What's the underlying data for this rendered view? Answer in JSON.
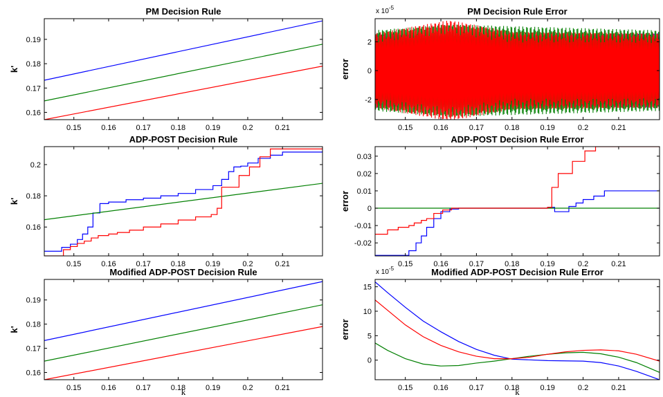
{
  "series_colors": [
    "#0000ff",
    "#007f00",
    "#ff0000"
  ],
  "chart_data": [
    {
      "type": "line",
      "title": "PM Decision Rule",
      "xlabel": "",
      "ylabel": "k'",
      "xlim": [
        0.1415,
        0.2215
      ],
      "ylim": [
        0.157,
        0.1985
      ],
      "xticks": [
        0.15,
        0.16,
        0.17,
        0.18,
        0.19,
        0.2,
        0.21
      ],
      "xtick_labels": [
        "0.15",
        "0.16",
        "0.17",
        "0.18",
        "0.19",
        "0.2",
        "0.21"
      ],
      "yticks": [
        0.16,
        0.17,
        0.18,
        0.19
      ],
      "ytick_labels": [
        "0.16",
        "0.17",
        "0.18",
        "0.19"
      ],
      "series": [
        {
          "x": [
            0.1415,
            0.2215
          ],
          "y": [
            0.1732,
            0.1976
          ]
        },
        {
          "x": [
            0.1415,
            0.2215
          ],
          "y": [
            0.1647,
            0.188
          ]
        },
        {
          "x": [
            0.1415,
            0.2215
          ],
          "y": [
            0.157,
            0.179
          ]
        }
      ]
    },
    {
      "type": "line",
      "title": "PM Decision Rule Error",
      "xlabel": "",
      "ylabel": "error",
      "multiplier": "x 10",
      "multiplier_exp": "-5",
      "xlim": [
        0.1415,
        0.2215
      ],
      "ylim": [
        -3.4,
        3.6
      ],
      "xticks": [
        0.15,
        0.16,
        0.17,
        0.18,
        0.19,
        0.2,
        0.21
      ],
      "xtick_labels": [
        "0.15",
        "0.16",
        "0.17",
        "0.18",
        "0.19",
        "0.2",
        "0.21"
      ],
      "yticks": [
        -2,
        0,
        2
      ],
      "ytick_labels": [
        "-2",
        "0",
        "2"
      ],
      "oscillating": true,
      "series": [
        {
          "amplitude": [
            [
              0.1415,
              2.6
            ],
            [
              0.1625,
              2.4
            ],
            [
              0.2215,
              2.6
            ]
          ]
        },
        {
          "amplitude": [
            [
              0.1415,
              2.8
            ],
            [
              0.1625,
              3.2
            ],
            [
              0.2215,
              2.8
            ]
          ]
        },
        {
          "amplitude": [
            [
              0.1415,
              2.6
            ],
            [
              0.1625,
              3.5
            ],
            [
              0.18,
              2.7
            ],
            [
              0.2215,
              2.6
            ]
          ]
        }
      ]
    },
    {
      "type": "line",
      "title": "ADP-POST Decision Rule",
      "xlabel": "",
      "ylabel": "k'",
      "xlim": [
        0.1415,
        0.2215
      ],
      "ylim": [
        0.1415,
        0.2115
      ],
      "xticks": [
        0.15,
        0.16,
        0.17,
        0.18,
        0.19,
        0.2,
        0.21
      ],
      "xtick_labels": [
        "0.15",
        "0.16",
        "0.17",
        "0.18",
        "0.19",
        "0.2",
        "0.21"
      ],
      "yticks": [
        0.16,
        0.18,
        0.2
      ],
      "ytick_labels": [
        "0.16",
        "0.18",
        "0.2"
      ],
      "series": [
        {
          "step": true,
          "x": [
            0.1415,
            0.1465,
            0.149,
            0.151,
            0.1525,
            0.154,
            0.1555,
            0.1575,
            0.16,
            0.165,
            0.17,
            0.175,
            0.18,
            0.185,
            0.19,
            0.1925,
            0.1945,
            0.196,
            0.198,
            0.2,
            0.203,
            0.2065,
            0.21,
            0.2215
          ],
          "y": [
            0.1445,
            0.147,
            0.149,
            0.152,
            0.1555,
            0.16,
            0.169,
            0.175,
            0.176,
            0.1775,
            0.1785,
            0.18,
            0.1815,
            0.184,
            0.1865,
            0.1905,
            0.1955,
            0.1985,
            0.199,
            0.201,
            0.204,
            0.206,
            0.208,
            0.209
          ]
        },
        {
          "step": false,
          "x": [
            0.1415,
            0.2215
          ],
          "y": [
            0.1647,
            0.188
          ]
        },
        {
          "step": true,
          "x": [
            0.1415,
            0.147,
            0.149,
            0.151,
            0.153,
            0.155,
            0.157,
            0.16,
            0.1625,
            0.166,
            0.17,
            0.175,
            0.18,
            0.185,
            0.1895,
            0.1912,
            0.1925,
            0.1975,
            0.2005,
            0.2035,
            0.2065,
            0.2215
          ],
          "y": [
            0.1415,
            0.1455,
            0.1475,
            0.1495,
            0.151,
            0.153,
            0.1545,
            0.1555,
            0.1565,
            0.158,
            0.16,
            0.162,
            0.1645,
            0.1665,
            0.168,
            0.172,
            0.1855,
            0.193,
            0.1985,
            0.205,
            0.21,
            0.215
          ]
        }
      ]
    },
    {
      "type": "line",
      "title": "ADP-POST Decision Rule Error",
      "xlabel": "",
      "ylabel": "error",
      "xlim": [
        0.1415,
        0.2215
      ],
      "ylim": [
        -0.0275,
        0.0355
      ],
      "xticks": [
        0.15,
        0.16,
        0.17,
        0.18,
        0.19,
        0.2,
        0.21
      ],
      "xtick_labels": [
        "0.15",
        "0.16",
        "0.17",
        "0.18",
        "0.19",
        "0.2",
        "0.21"
      ],
      "yticks": [
        -0.02,
        -0.01,
        0,
        0.01,
        0.02,
        0.03
      ],
      "ytick_labels": [
        "-0.02",
        "-0.01",
        "0",
        "0.01",
        "0.02",
        "0.03"
      ],
      "series": [
        {
          "step": true,
          "x": [
            0.1415,
            0.149,
            0.151,
            0.153,
            0.1545,
            0.156,
            0.158,
            0.16,
            0.1625,
            0.165,
            0.19,
            0.192,
            0.194,
            0.196,
            0.198,
            0.2,
            0.203,
            0.206,
            0.2215
          ],
          "y": [
            -0.0272,
            -0.0272,
            -0.0245,
            -0.02,
            -0.016,
            -0.011,
            -0.006,
            -0.002,
            -0.0005,
            0.0,
            0.0005,
            -0.002,
            -0.002,
            0.001,
            0.003,
            0.005,
            0.007,
            0.01,
            0.011
          ]
        },
        {
          "step": false,
          "x": [
            0.1415,
            0.2215
          ],
          "y": [
            0.0,
            0.0
          ]
        },
        {
          "step": true,
          "x": [
            0.1415,
            0.145,
            0.148,
            0.151,
            0.1525,
            0.1545,
            0.156,
            0.158,
            0.1605,
            0.163,
            0.19,
            0.1912,
            0.193,
            0.197,
            0.2005,
            0.2035,
            0.2065,
            0.2215
          ],
          "y": [
            -0.015,
            -0.0125,
            -0.011,
            -0.01,
            -0.0085,
            -0.007,
            -0.006,
            -0.003,
            -0.001,
            0.0,
            0.0005,
            0.012,
            0.02,
            0.027,
            0.033,
            0.0355,
            0.0355,
            0.035
          ]
        }
      ]
    },
    {
      "type": "line",
      "title": "Modified ADP-POST Decision Rule",
      "xlabel": "k",
      "ylabel": "k'",
      "xlim": [
        0.1415,
        0.2215
      ],
      "ylim": [
        0.157,
        0.1985
      ],
      "xticks": [
        0.15,
        0.16,
        0.17,
        0.18,
        0.19,
        0.2,
        0.21
      ],
      "xtick_labels": [
        "0.15",
        "0.16",
        "0.17",
        "0.18",
        "0.19",
        "0.2",
        "0.21"
      ],
      "yticks": [
        0.16,
        0.17,
        0.18,
        0.19
      ],
      "ytick_labels": [
        "0.16",
        "0.17",
        "0.18",
        "0.19"
      ],
      "series": [
        {
          "x": [
            0.1415,
            0.2215
          ],
          "y": [
            0.1732,
            0.1976
          ]
        },
        {
          "x": [
            0.1415,
            0.2215
          ],
          "y": [
            0.1647,
            0.188
          ]
        },
        {
          "x": [
            0.1415,
            0.2215
          ],
          "y": [
            0.157,
            0.179
          ]
        }
      ]
    },
    {
      "type": "line",
      "title": "Modified ADP-POST Decision Rule Error",
      "xlabel": "k",
      "ylabel": "error",
      "multiplier": "x 10",
      "multiplier_exp": "-5",
      "xlim": [
        0.1415,
        0.2215
      ],
      "ylim": [
        -4.0,
        16.5
      ],
      "xticks": [
        0.15,
        0.16,
        0.17,
        0.18,
        0.19,
        0.2,
        0.21
      ],
      "xtick_labels": [
        "0.15",
        "0.16",
        "0.17",
        "0.18",
        "0.19",
        "0.2",
        "0.21"
      ],
      "yticks": [
        0,
        5,
        10,
        15
      ],
      "ytick_labels": [
        "0",
        "5",
        "10",
        "15"
      ],
      "series": [
        {
          "x": [
            0.1415,
            0.145,
            0.15,
            0.155,
            0.16,
            0.165,
            0.17,
            0.175,
            0.18,
            0.19,
            0.2,
            0.205,
            0.21,
            0.215,
            0.2215
          ],
          "y": [
            16.0,
            13.8,
            10.8,
            8.0,
            5.8,
            3.8,
            2.2,
            1.0,
            0.2,
            -0.1,
            -0.2,
            -0.5,
            -1.2,
            -2.3,
            -4.0
          ]
        },
        {
          "x": [
            0.1415,
            0.145,
            0.15,
            0.155,
            0.16,
            0.165,
            0.17,
            0.175,
            0.18,
            0.185,
            0.19,
            0.195,
            0.2,
            0.205,
            0.21,
            0.215,
            0.2215
          ],
          "y": [
            3.5,
            2.0,
            0.3,
            -0.8,
            -1.2,
            -1.1,
            -0.6,
            -0.2,
            0.3,
            0.8,
            1.2,
            1.5,
            1.6,
            1.3,
            0.6,
            -0.5,
            -2.5
          ]
        },
        {
          "x": [
            0.1415,
            0.145,
            0.15,
            0.155,
            0.16,
            0.165,
            0.17,
            0.175,
            0.18,
            0.185,
            0.19,
            0.195,
            0.2,
            0.205,
            0.21,
            0.215,
            0.2215
          ],
          "y": [
            12.3,
            10.2,
            7.2,
            4.8,
            3.0,
            1.7,
            0.8,
            0.3,
            0.3,
            0.6,
            1.2,
            1.7,
            2.0,
            2.1,
            1.9,
            1.2,
            -0.2
          ]
        }
      ]
    }
  ]
}
